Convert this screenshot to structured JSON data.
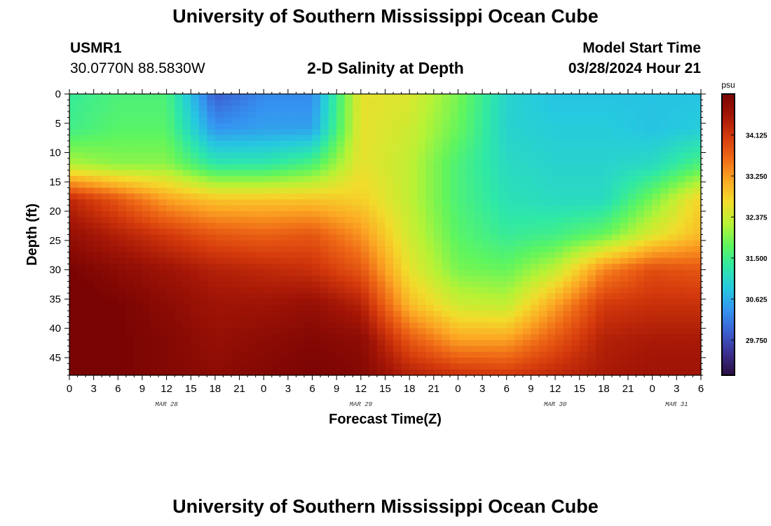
{
  "header": {
    "title": "University of Southern Mississippi Ocean Cube",
    "station_id": "USMR1",
    "coordinates": "30.0770N  88.5830W",
    "model_start_label": "Model Start Time",
    "model_start_value": "03/28/2024 Hour 21"
  },
  "footer": {
    "title": "University of Southern Mississippi Ocean Cube"
  },
  "chart_data": {
    "type": "heatmap",
    "title": "2-D Salinity at Depth",
    "xlabel": "Forecast Time(Z)",
    "ylabel": "Depth (ft)",
    "x_ticks": [
      "0",
      "3",
      "6",
      "9",
      "12",
      "15",
      "18",
      "21",
      "0",
      "3",
      "6",
      "9",
      "12",
      "15",
      "18",
      "21",
      "0",
      "3",
      "6",
      "9",
      "12",
      "15",
      "18",
      "21",
      "0",
      "3",
      "6"
    ],
    "x_range_hours": [
      0,
      78
    ],
    "date_labels": [
      {
        "label": "MAR 28",
        "hour": 12
      },
      {
        "label": "MAR 29",
        "hour": 36
      },
      {
        "label": "MAR 30",
        "hour": 60
      },
      {
        "label": "MAR 31",
        "hour": 75
      }
    ],
    "y_ticks": [
      0,
      5,
      10,
      15,
      20,
      25,
      30,
      35,
      40,
      45
    ],
    "ylim": [
      0,
      48
    ],
    "y_inverted": true,
    "colorbar": {
      "unit": "psu",
      "ticks": [
        "34.125",
        "33.250",
        "32.375",
        "31.500",
        "30.625",
        "29.750"
      ],
      "range": [
        29.0,
        35.0
      ],
      "colors": [
        "#2a0f3f",
        "#3b2f8f",
        "#3c5fd0",
        "#3594f0",
        "#26c8e0",
        "#2ee8a8",
        "#5ff55e",
        "#b8f235",
        "#f2dc2b",
        "#fca824",
        "#ef6a16",
        "#d53a0c",
        "#a41606",
        "#7a0403"
      ]
    },
    "grid_cols_hours": [
      0,
      6,
      12,
      18,
      24,
      30,
      36,
      42,
      48,
      54,
      60,
      66,
      72,
      78
    ],
    "grid_rows_depth": [
      0,
      6,
      12,
      18,
      24,
      30,
      36,
      42,
      48
    ],
    "values": [
      [
        31.4,
        31.6,
        31.6,
        29.9,
        30.3,
        30.3,
        32.6,
        32.5,
        31.9,
        31.0,
        30.8,
        30.8,
        30.8,
        30.8
      ],
      [
        31.5,
        31.7,
        31.7,
        30.4,
        30.5,
        30.5,
        32.6,
        32.4,
        31.8,
        31.0,
        30.9,
        30.9,
        30.8,
        30.9
      ],
      [
        32.2,
        32.0,
        32.0,
        31.3,
        31.3,
        31.6,
        32.6,
        32.3,
        31.6,
        31.1,
        31.0,
        31.0,
        31.1,
        31.6
      ],
      [
        34.3,
        33.8,
        33.2,
        32.9,
        32.9,
        32.9,
        32.8,
        32.3,
        31.6,
        31.2,
        31.1,
        31.1,
        31.9,
        32.8
      ],
      [
        34.7,
        34.4,
        34.1,
        33.8,
        33.7,
        33.8,
        33.3,
        32.4,
        31.7,
        31.4,
        31.5,
        31.8,
        32.5,
        33.0
      ],
      [
        35.0,
        34.8,
        34.6,
        34.4,
        34.3,
        34.2,
        33.8,
        32.6,
        31.9,
        31.8,
        32.3,
        33.4,
        33.9,
        33.8
      ],
      [
        35.1,
        35.0,
        34.8,
        34.6,
        34.6,
        34.7,
        34.4,
        33.0,
        32.4,
        32.3,
        33.2,
        34.1,
        34.2,
        34.2
      ],
      [
        35.1,
        35.0,
        34.9,
        34.7,
        34.8,
        34.9,
        34.8,
        33.8,
        33.2,
        33.2,
        33.8,
        34.4,
        34.5,
        34.5
      ],
      [
        35.1,
        35.0,
        34.9,
        34.8,
        34.9,
        35.0,
        34.9,
        34.4,
        34.2,
        34.1,
        34.3,
        34.5,
        34.6,
        34.6
      ]
    ]
  }
}
